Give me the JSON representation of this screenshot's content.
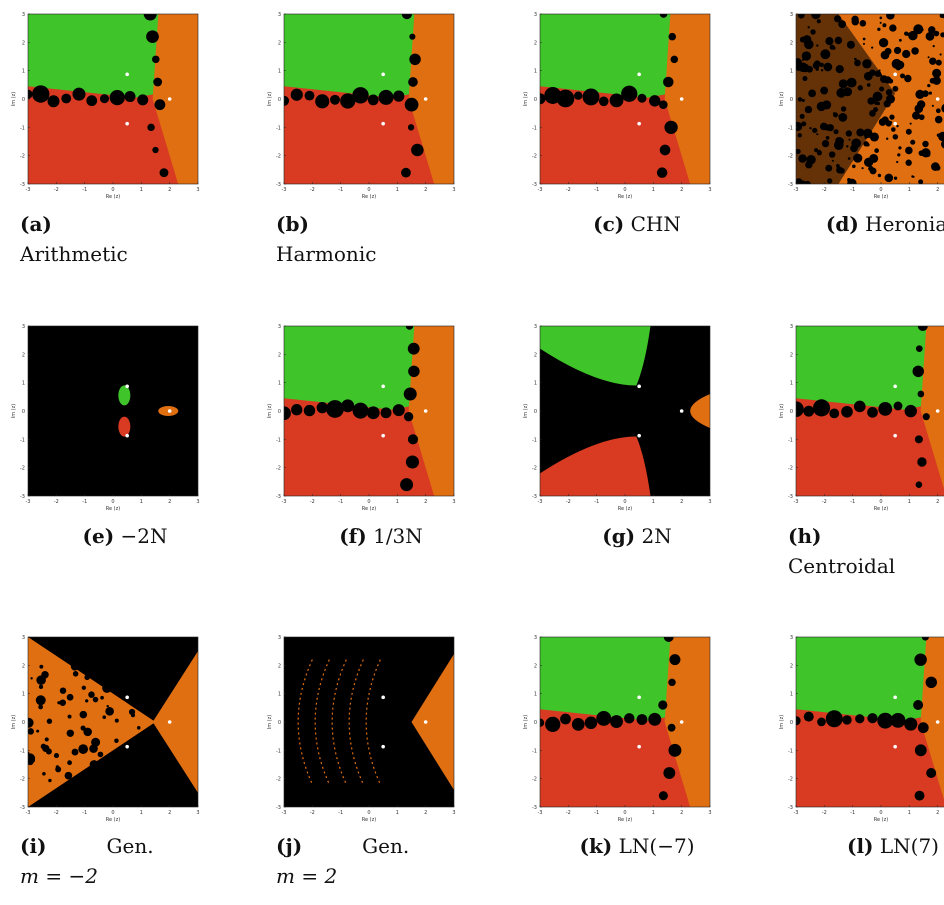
{
  "figure": {
    "colors": {
      "green": "#3fc42a",
      "red": "#d83b22",
      "orange": "#e06f12",
      "black": "#000000",
      "root_dot": "#ffffff"
    },
    "axes": {
      "xlabel": "Re (z)",
      "ylabel": "Im (z)",
      "ticks": [
        "-3",
        "-2",
        "-1",
        "0",
        "1",
        "2",
        "3"
      ]
    },
    "panels": [
      {
        "id": "a",
        "letter": "a",
        "text": "Arithmetic",
        "layout": "green-top-red-bottom-orange-right",
        "black_fraction": 0.12
      },
      {
        "id": "b",
        "letter": "b",
        "text": "Harmonic",
        "layout": "green-top-red-bottom-orange-right",
        "black_fraction": 0.08
      },
      {
        "id": "c",
        "letter": "c",
        "text": "CHN",
        "layout": "green-top-red-bottom-orange-right",
        "black_fraction": 0.25
      },
      {
        "id": "d",
        "letter": "d",
        "text": "Heronian",
        "layout": "chaotic-orange-black",
        "black_fraction": 0.5
      },
      {
        "id": "e",
        "letter": "e",
        "text": "−2N",
        "layout": "mostly-black-petals",
        "black_fraction": 0.97
      },
      {
        "id": "f",
        "letter": "f",
        "text": "1/3N",
        "layout": "green-top-red-bottom-orange-right",
        "black_fraction": 0.12
      },
      {
        "id": "g",
        "letter": "g",
        "text": "2N",
        "layout": "black-cross",
        "black_fraction": 0.5
      },
      {
        "id": "h",
        "letter": "h",
        "text": "Centroidal",
        "layout": "green-top-red-bottom-orange-right",
        "black_fraction": 0.15
      },
      {
        "id": "i",
        "letter": "i",
        "text": "Gen.",
        "sub": "m = −2",
        "layout": "orange-wedge-fractal",
        "black_fraction": 0.55
      },
      {
        "id": "j",
        "letter": "j",
        "text": "Gen.",
        "sub": "m = 2",
        "layout": "orange-wedge-sparse",
        "black_fraction": 0.75
      },
      {
        "id": "k",
        "letter": "k",
        "text": "LN(−7)",
        "layout": "green-top-red-bottom-orange-right",
        "black_fraction": 0.05
      },
      {
        "id": "l",
        "letter": "l",
        "text": "LN(7)",
        "layout": "green-top-red-bottom-orange-right",
        "black_fraction": 0.12
      }
    ]
  }
}
